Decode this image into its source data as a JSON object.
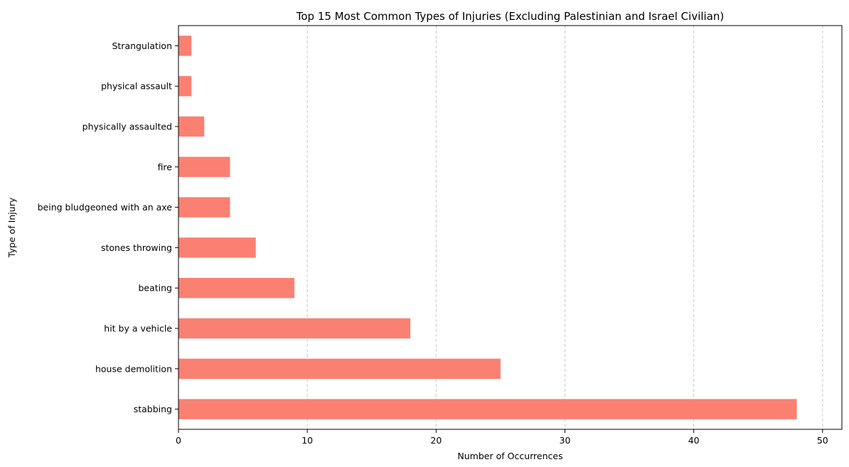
{
  "chart_data": {
    "type": "bar",
    "orientation": "horizontal",
    "title": "Top 15 Most Common Types of Injuries (Excluding Palestinian and Israel Civilian)",
    "xlabel": "Number of Occurrences",
    "ylabel": "Type of Injury",
    "categories": [
      "stabbing",
      "house demolition",
      "hit by a vehicle",
      "beating",
      "stones throwing",
      "being bludgeoned with an axe",
      "fire",
      "physically assaulted",
      "physical assault",
      "Strangulation"
    ],
    "values": [
      48,
      25,
      18,
      9,
      6,
      4,
      4,
      2,
      1,
      1
    ],
    "xlim": [
      0,
      51.5
    ],
    "xticks": [
      0,
      10,
      20,
      30,
      40,
      50
    ],
    "grid": "x-dashed",
    "bar_color": "#fa8072",
    "grid_color": "#c8c8c8"
  }
}
